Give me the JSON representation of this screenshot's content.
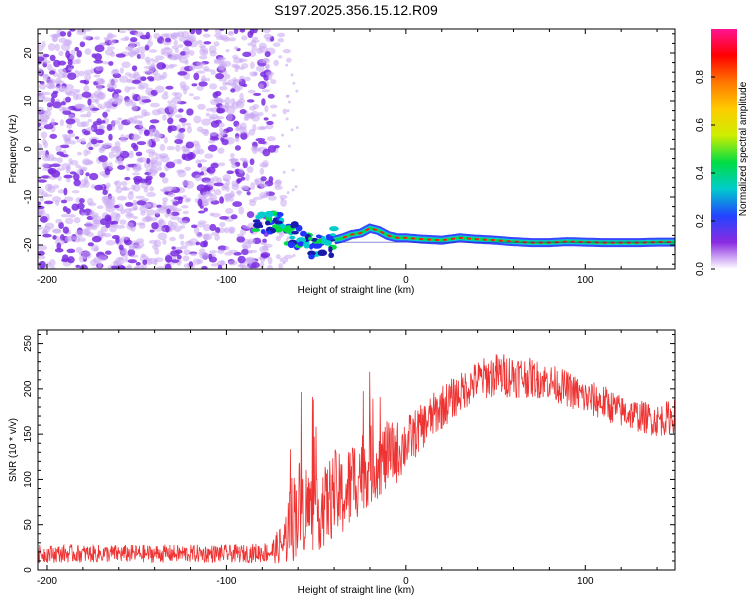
{
  "title": "S197.2025.356.15.12.R09",
  "colors": {
    "bg": "#ffffff",
    "axis": "#000000",
    "snr_line": "#ee3333",
    "noise": "#7a2be0",
    "noise_light": "#c8a8f2"
  },
  "colorbar": {
    "label": "Normalized spectral amplitude",
    "range": [
      0.0,
      1.0
    ],
    "ticks": [
      0.0,
      0.2,
      0.4,
      0.6,
      0.8
    ],
    "tick_labels": [
      "0.0",
      "0.2",
      "0.4",
      "0.6",
      "0.8"
    ],
    "stops": [
      "#ffffff",
      "#8a2be2",
      "#2244ff",
      "#00cccc",
      "#00dd44",
      "#ccee00",
      "#ffcc00",
      "#ff7700",
      "#ff0000",
      "#ff1493"
    ]
  },
  "chart_data": [
    {
      "type": "heatmap",
      "title": "S197.2025.356.15.12.R09",
      "xlabel": "Height of straight line (km)",
      "ylabel": "Frequency (Hz)",
      "xlim": [
        -205,
        150
      ],
      "ylim": [
        -25,
        25
      ],
      "xticks": [
        -200,
        -100,
        0,
        100
      ],
      "xtick_labels": [
        "-200",
        "-100",
        "0",
        "100"
      ],
      "yticks": [
        -20,
        -10,
        0,
        10,
        20
      ],
      "ytick_labels": [
        "-20",
        "-10",
        "0",
        "10",
        "20"
      ],
      "noise_region_x": [
        -205,
        -75
      ],
      "noise_fade_x": [
        -75,
        -65
      ],
      "signal_track": {
        "x": [
          -85,
          -80,
          -75,
          -70,
          -65,
          -60,
          -55,
          -50,
          -45,
          -40,
          -35,
          -30,
          -25,
          -20,
          -15,
          -10,
          -5,
          0,
          10,
          20,
          30,
          40,
          50,
          60,
          70,
          80,
          90,
          100,
          110,
          120,
          130,
          140,
          150
        ],
        "freq": [
          -14.5,
          -15.0,
          -15.5,
          -16.0,
          -17.5,
          -18.5,
          -19.5,
          -20.5,
          -21.0,
          -19.0,
          -18.5,
          -17.8,
          -17.5,
          -16.5,
          -17.0,
          -18.0,
          -18.5,
          -18.5,
          -18.8,
          -19.0,
          -18.5,
          -18.8,
          -19.0,
          -19.3,
          -19.5,
          -19.5,
          -19.3,
          -19.4,
          -19.5,
          -19.5,
          -19.5,
          -19.4,
          -19.4
        ]
      }
    },
    {
      "type": "line",
      "xlabel": "Height of straight line (km)",
      "ylabel": "SNR (10 * v/v)",
      "xlim": [
        -205,
        150
      ],
      "ylim": [
        0,
        265
      ],
      "xticks": [
        -200,
        -100,
        0,
        100
      ],
      "xtick_labels": [
        "-200",
        "-100",
        "0",
        "100"
      ],
      "yticks": [
        0,
        50,
        100,
        150,
        200,
        250
      ],
      "ytick_labels": [
        "0",
        "50",
        "100",
        "150",
        "200",
        "250"
      ],
      "series": [
        {
          "name": "SNR",
          "x": [
            -205,
            -180,
            -150,
            -120,
            -90,
            -75,
            -68,
            -64,
            -60,
            -55,
            -50,
            -45,
            -40,
            -35,
            -30,
            -25,
            -20,
            -15,
            -10,
            -5,
            0,
            10,
            20,
            30,
            40,
            50,
            60,
            70,
            80,
            90,
            100,
            110,
            120,
            130,
            140,
            150
          ],
          "mean": [
            18,
            18,
            18,
            18,
            18,
            20,
            30,
            55,
            70,
            70,
            60,
            70,
            85,
            80,
            95,
            110,
            115,
            120,
            125,
            130,
            140,
            160,
            180,
            195,
            210,
            215,
            215,
            212,
            208,
            200,
            190,
            185,
            175,
            170,
            165,
            170
          ],
          "amp": [
            10,
            10,
            10,
            10,
            10,
            12,
            25,
            50,
            55,
            50,
            40,
            45,
            50,
            45,
            50,
            45,
            45,
            40,
            40,
            35,
            30,
            25,
            25,
            22,
            22,
            25,
            25,
            22,
            20,
            20,
            20,
            20,
            18,
            18,
            18,
            20
          ]
        }
      ]
    }
  ]
}
